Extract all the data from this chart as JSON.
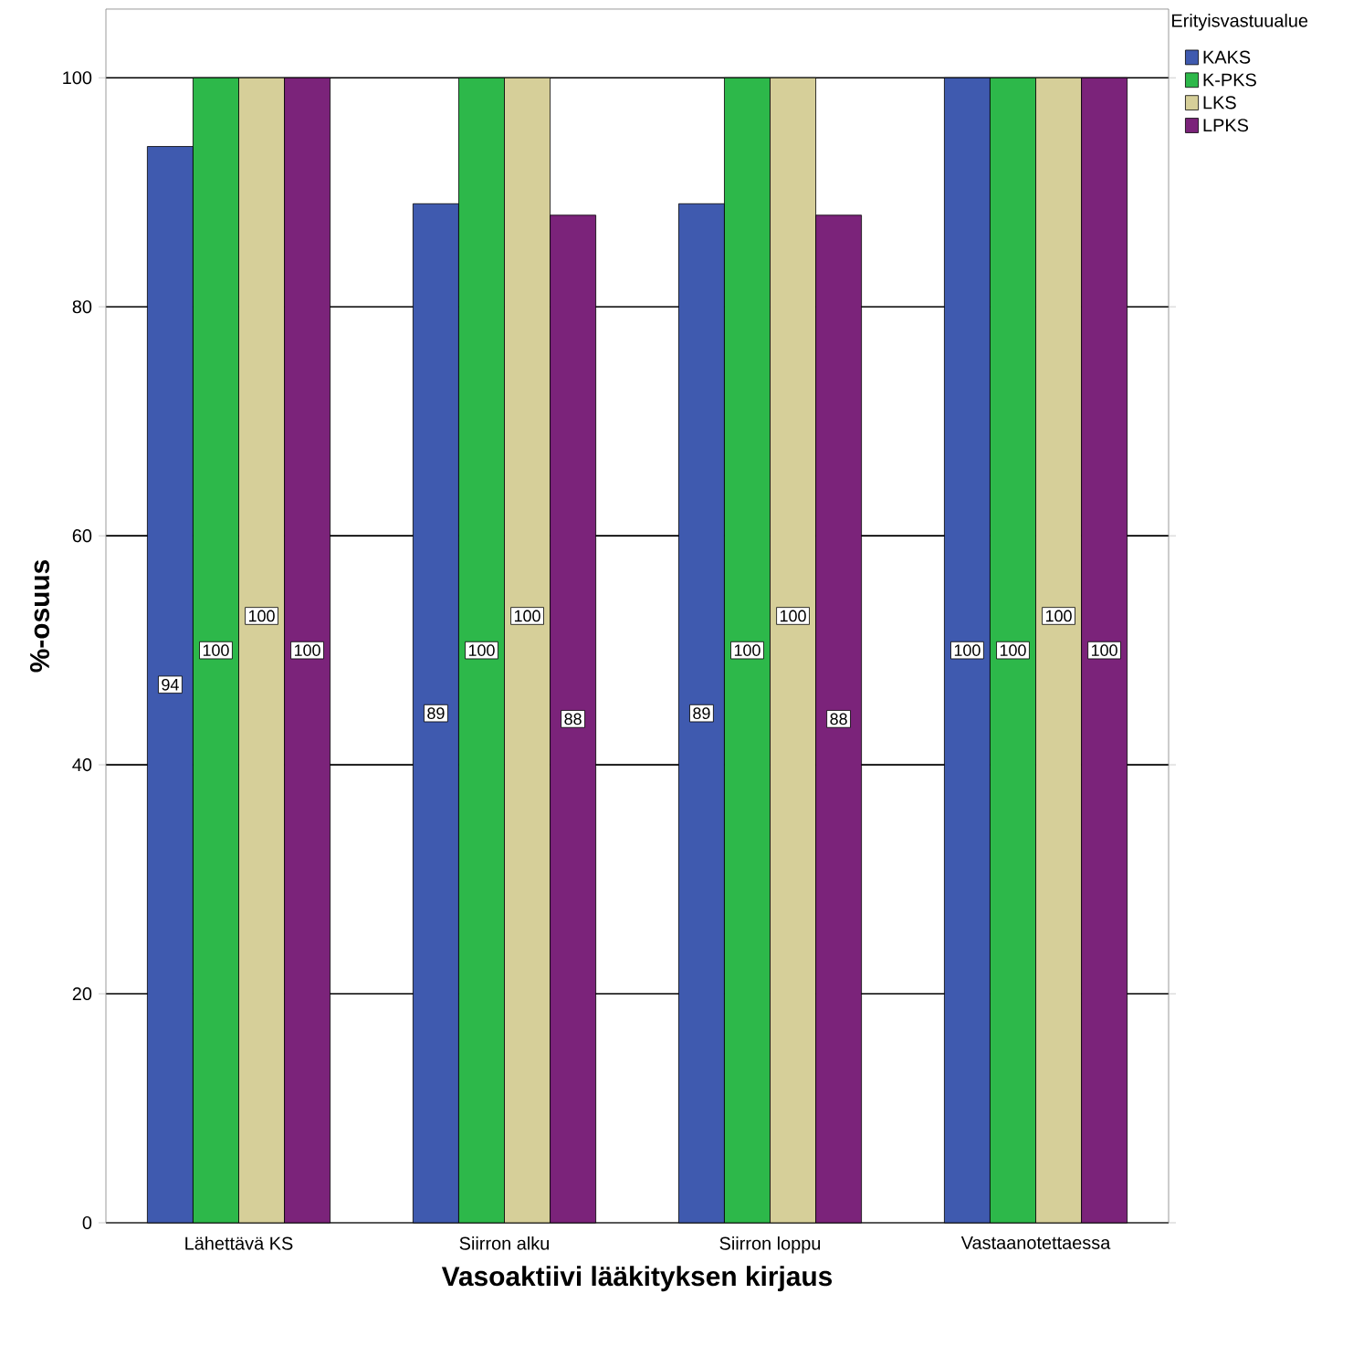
{
  "chart_data": {
    "type": "bar",
    "xlabel": "Vasoaktiivi lääkityksen kirjaus",
    "ylabel": "%-osuus",
    "legend_title": "Erityisvastuualue",
    "categories": [
      "Lähettävä KS",
      "Siirron alku",
      "Siirron loppu",
      "Vastaanotettaessa"
    ],
    "series": [
      {
        "name": "KAKS",
        "color": "#3f5aaf",
        "values": [
          94,
          89,
          89,
          100
        ]
      },
      {
        "name": "K-PKS",
        "color": "#2db84a",
        "values": [
          100,
          100,
          100,
          100
        ]
      },
      {
        "name": "LKS",
        "color": "#d6cf99",
        "values": [
          100,
          100,
          100,
          100
        ]
      },
      {
        "name": "LPKS",
        "color": "#7b237a",
        "values": [
          100,
          88,
          88,
          100
        ]
      }
    ],
    "ylim": [
      0,
      106
    ],
    "yticks": [
      0,
      20,
      40,
      60,
      80,
      100
    ],
    "grid": "y",
    "legend": "top right",
    "data_labels": true
  }
}
